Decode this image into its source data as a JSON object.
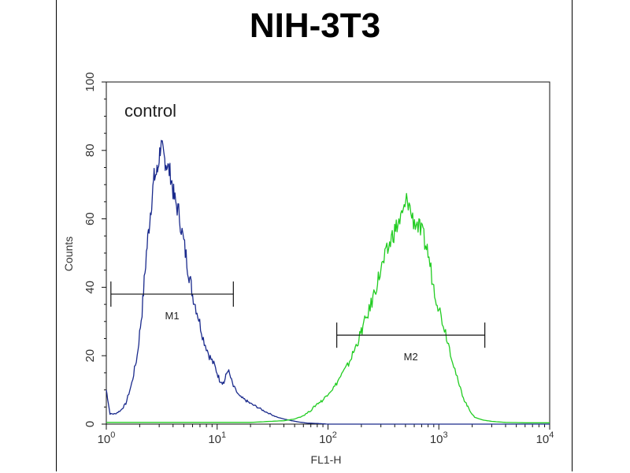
{
  "chart_data": {
    "type": "line",
    "title": "NIH-3T3",
    "xlabel": "FL1-H",
    "ylabel": "Counts",
    "x_scale": "log",
    "xlim": [
      1,
      10000
    ],
    "ylim": [
      0,
      100
    ],
    "x_ticks": [
      {
        "value": 1,
        "base": "10",
        "exp": "0"
      },
      {
        "value": 10,
        "base": "10",
        "exp": "1"
      },
      {
        "value": 100,
        "base": "10",
        "exp": "2"
      },
      {
        "value": 1000,
        "base": "10",
        "exp": "3"
      },
      {
        "value": 10000,
        "base": "10",
        "exp": "4"
      }
    ],
    "y_ticks": [
      0,
      20,
      40,
      60,
      80,
      100
    ],
    "annotations": [
      {
        "text": "control"
      },
      {
        "text": "M1",
        "x_range": [
          1.1,
          14
        ],
        "y": 38
      },
      {
        "text": "M2",
        "x_range": [
          120,
          2600
        ],
        "y": 26
      }
    ],
    "series": [
      {
        "color": "#1a2a8c",
        "x": [
          1,
          1.08,
          1.2,
          1.35,
          1.5,
          1.7,
          1.9,
          2.1,
          2.3,
          2.5,
          2.7,
          2.9,
          3.1,
          3.3,
          3.5,
          3.8,
          4.1,
          4.5,
          5,
          5.5,
          6,
          6.7,
          7.5,
          8.5,
          9.5,
          10.5,
          11.5,
          12.5,
          14,
          16,
          18,
          20,
          23,
          26,
          30,
          35,
          40,
          47,
          55,
          65,
          80,
          100,
          200,
          1000,
          10000
        ],
        "y": [
          10,
          3,
          3,
          4,
          6,
          12,
          20,
          33,
          50,
          62,
          72,
          74,
          82,
          78,
          76,
          73,
          66,
          62,
          53,
          45,
          38,
          32,
          25,
          20,
          17,
          13,
          12,
          16,
          11,
          8,
          7,
          6,
          5,
          4,
          3,
          2,
          1.5,
          1,
          0.6,
          0.3,
          0.2,
          0,
          0,
          0,
          0
        ]
      },
      {
        "color": "#22cc22",
        "x": [
          1,
          5,
          10,
          20,
          30,
          40,
          50,
          60,
          70,
          80,
          90,
          100,
          115,
          130,
          150,
          170,
          190,
          210,
          240,
          270,
          300,
          340,
          380,
          420,
          470,
          520,
          580,
          650,
          720,
          800,
          900,
          1000,
          1150,
          1300,
          1500,
          1700,
          1900,
          2100,
          2500,
          3000,
          4000,
          6000,
          10000
        ],
        "y": [
          0.5,
          0.5,
          0.5,
          0.5,
          0.8,
          1,
          1.5,
          2.5,
          4,
          6,
          7,
          9,
          11,
          14,
          17,
          21,
          25,
          29,
          34,
          40,
          45,
          50,
          55,
          58,
          61,
          66,
          60,
          58,
          55,
          50,
          40,
          34,
          27,
          20,
          12,
          7,
          4,
          2,
          1.2,
          0.8,
          0.5,
          0.4,
          0.4
        ]
      }
    ]
  }
}
